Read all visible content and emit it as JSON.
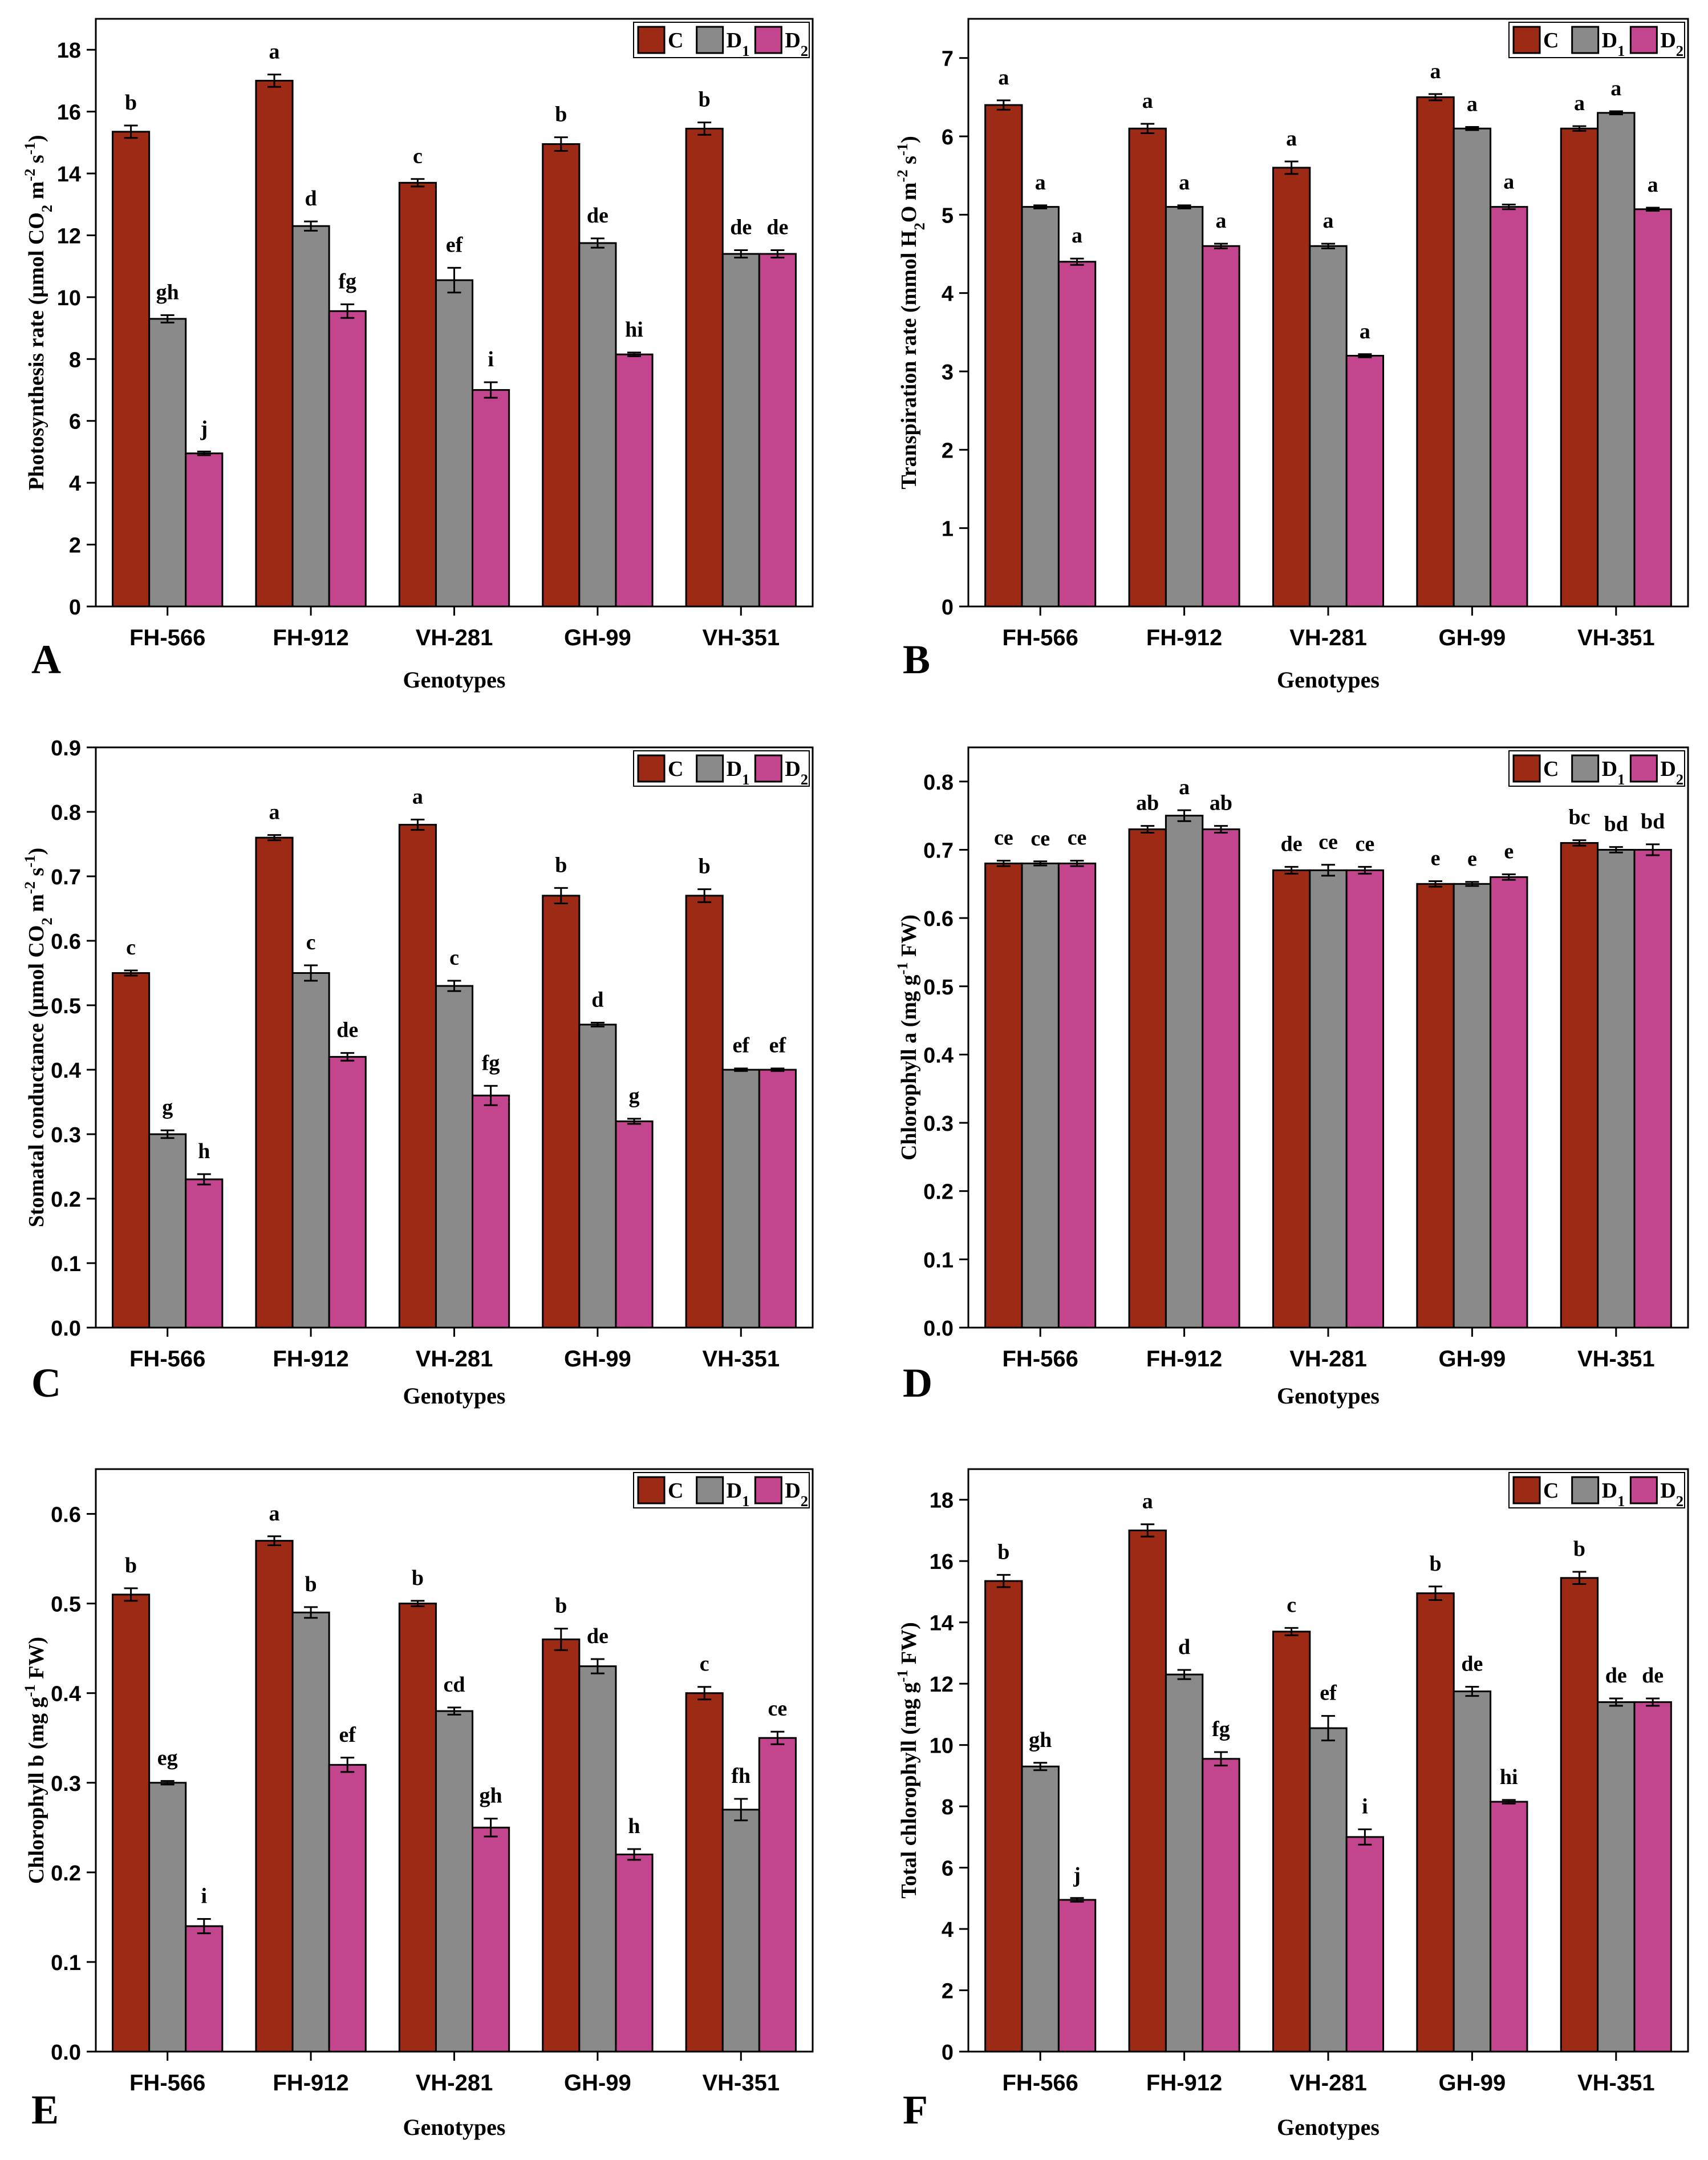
{
  "series_colors": {
    "C": "#9c2a14",
    "D1": "#8a8a8a",
    "D2": "#c2458d"
  },
  "chart_data": [
    {
      "panel": "A",
      "type": "bar",
      "ylabel": "Photosynthesis rate (µmol CO₂ m⁻² s⁻¹)",
      "xlabel": "Genotypes",
      "ylim": [
        0,
        19
      ],
      "yticks": [
        0,
        2,
        4,
        6,
        8,
        10,
        12,
        14,
        16,
        18
      ],
      "ytick_decimals": 0,
      "categories": [
        "FH-566",
        "FH-912",
        "VH-281",
        "GH-99",
        "VH-351"
      ],
      "series": [
        {
          "name": "C",
          "values": [
            15.35,
            17.0,
            13.7,
            14.95,
            15.45
          ],
          "errors": [
            0.2,
            0.2,
            0.12,
            0.22,
            0.2
          ],
          "labels": [
            "b",
            "a",
            "c",
            "b",
            "b"
          ]
        },
        {
          "name": "D1",
          "values": [
            9.3,
            12.3,
            10.55,
            11.75,
            11.4
          ],
          "errors": [
            0.12,
            0.15,
            0.4,
            0.15,
            0.12
          ],
          "labels": [
            "gh",
            "d",
            "ef",
            "de",
            "de"
          ]
        },
        {
          "name": "D2",
          "values": [
            4.95,
            9.55,
            7.0,
            8.15,
            11.4
          ],
          "errors": [
            0.06,
            0.22,
            0.25,
            0.06,
            0.12
          ],
          "labels": [
            "j",
            "fg",
            "i",
            "hi",
            "de"
          ]
        }
      ]
    },
    {
      "panel": "B",
      "type": "bar",
      "ylabel": "Transpiration rate (mmol H₂O m⁻² s⁻¹)",
      "xlabel": "Genotypes",
      "ylim": [
        0,
        7.5
      ],
      "yticks": [
        0,
        1,
        2,
        3,
        4,
        5,
        6,
        7
      ],
      "ytick_decimals": 0,
      "categories": [
        "FH-566",
        "FH-912",
        "VH-281",
        "GH-99",
        "VH-351"
      ],
      "series": [
        {
          "name": "C",
          "values": [
            6.4,
            6.1,
            5.6,
            6.5,
            6.1
          ],
          "errors": [
            0.06,
            0.06,
            0.08,
            0.04,
            0.03
          ],
          "labels": [
            "a",
            "a",
            "a",
            "a",
            "a"
          ]
        },
        {
          "name": "D1",
          "values": [
            5.1,
            5.1,
            4.6,
            6.1,
            6.3
          ],
          "errors": [
            0.02,
            0.02,
            0.03,
            0.02,
            0.02
          ],
          "labels": [
            "a",
            "a",
            "a",
            "a",
            "a"
          ]
        },
        {
          "name": "D2",
          "values": [
            4.4,
            4.6,
            3.2,
            5.1,
            5.07
          ],
          "errors": [
            0.04,
            0.03,
            0.02,
            0.03,
            0.02
          ],
          "labels": [
            "a",
            "a",
            "a",
            "a",
            "a"
          ]
        }
      ]
    },
    {
      "panel": "C",
      "type": "bar",
      "ylabel": "Stomatal conductance (µmol CO₂ m⁻² s⁻¹)",
      "xlabel": "Genotypes",
      "ylim": [
        0,
        0.9
      ],
      "yticks": [
        0.0,
        0.1,
        0.2,
        0.3,
        0.4,
        0.5,
        0.6,
        0.7,
        0.8,
        0.9
      ],
      "ytick_decimals": 1,
      "categories": [
        "FH-566",
        "FH-912",
        "VH-281",
        "GH-99",
        "VH-351"
      ],
      "series": [
        {
          "name": "C",
          "values": [
            0.55,
            0.76,
            0.78,
            0.67,
            0.67
          ],
          "errors": [
            0.004,
            0.004,
            0.008,
            0.012,
            0.01
          ],
          "labels": [
            "c",
            "a",
            "a",
            "b",
            "b"
          ]
        },
        {
          "name": "D1",
          "values": [
            0.3,
            0.55,
            0.53,
            0.47,
            0.4
          ],
          "errors": [
            0.006,
            0.012,
            0.008,
            0.003,
            0.002
          ],
          "labels": [
            "g",
            "c",
            "c",
            "d",
            "ef"
          ]
        },
        {
          "name": "D2",
          "values": [
            0.23,
            0.42,
            0.36,
            0.32,
            0.4
          ],
          "errors": [
            0.008,
            0.006,
            0.015,
            0.004,
            0.002
          ],
          "labels": [
            "h",
            "de",
            "fg",
            "g",
            "ef"
          ]
        }
      ]
    },
    {
      "panel": "D",
      "type": "bar",
      "ylabel": "Chlorophyll a (mg g⁻¹ FW)",
      "xlabel": "Genotypes",
      "ylim": [
        0,
        0.85
      ],
      "yticks": [
        0.0,
        0.1,
        0.2,
        0.3,
        0.4,
        0.5,
        0.6,
        0.7,
        0.8
      ],
      "ytick_decimals": 1,
      "categories": [
        "FH-566",
        "FH-912",
        "VH-281",
        "GH-99",
        "VH-351"
      ],
      "series": [
        {
          "name": "C",
          "values": [
            0.68,
            0.73,
            0.67,
            0.65,
            0.71
          ],
          "errors": [
            0.004,
            0.005,
            0.005,
            0.004,
            0.004
          ],
          "labels": [
            "ce",
            "ab",
            "de",
            "e",
            "bc"
          ]
        },
        {
          "name": "D1",
          "values": [
            0.68,
            0.75,
            0.67,
            0.65,
            0.7
          ],
          "errors": [
            0.003,
            0.008,
            0.008,
            0.003,
            0.004
          ],
          "labels": [
            "ce",
            "a",
            "ce",
            "e",
            "bd"
          ]
        },
        {
          "name": "D2",
          "values": [
            0.68,
            0.73,
            0.67,
            0.66,
            0.7
          ],
          "errors": [
            0.004,
            0.005,
            0.005,
            0.004,
            0.008
          ],
          "labels": [
            "ce",
            "ab",
            "ce",
            "e",
            "bd"
          ]
        }
      ]
    },
    {
      "panel": "E",
      "type": "bar",
      "ylabel": "Chlorophyll b (mg g⁻¹ FW)",
      "xlabel": "Genotypes",
      "ylim": [
        0,
        0.65
      ],
      "yticks": [
        0.0,
        0.1,
        0.2,
        0.3,
        0.4,
        0.5,
        0.6
      ],
      "ytick_decimals": 1,
      "categories": [
        "FH-566",
        "FH-912",
        "VH-281",
        "GH-99",
        "VH-351"
      ],
      "series": [
        {
          "name": "C",
          "values": [
            0.51,
            0.57,
            0.5,
            0.46,
            0.4
          ],
          "errors": [
            0.007,
            0.005,
            0.003,
            0.012,
            0.007
          ],
          "labels": [
            "b",
            "a",
            "b",
            "b",
            "c"
          ]
        },
        {
          "name": "D1",
          "values": [
            0.3,
            0.49,
            0.38,
            0.43,
            0.27
          ],
          "errors": [
            0.002,
            0.006,
            0.004,
            0.008,
            0.012
          ],
          "labels": [
            "eg",
            "b",
            "cd",
            "de",
            "fh"
          ]
        },
        {
          "name": "D2",
          "values": [
            0.14,
            0.32,
            0.25,
            0.22,
            0.35
          ],
          "errors": [
            0.008,
            0.008,
            0.01,
            0.006,
            0.007
          ],
          "labels": [
            "i",
            "ef",
            "gh",
            "h",
            "ce"
          ]
        }
      ]
    },
    {
      "panel": "F",
      "type": "bar",
      "ylabel": "Total chlorophyll (mg g⁻¹ FW)",
      "xlabel": "Genotypes",
      "ylim": [
        0,
        19
      ],
      "yticks": [
        0,
        2,
        4,
        6,
        8,
        10,
        12,
        14,
        16,
        18
      ],
      "ytick_decimals": 0,
      "categories": [
        "FH-566",
        "FH-912",
        "VH-281",
        "GH-99",
        "VH-351"
      ],
      "series": [
        {
          "name": "C",
          "values": [
            15.35,
            17.0,
            13.7,
            14.95,
            15.45
          ],
          "errors": [
            0.2,
            0.2,
            0.12,
            0.22,
            0.2
          ],
          "labels": [
            "b",
            "a",
            "c",
            "b",
            "b"
          ]
        },
        {
          "name": "D1",
          "values": [
            9.3,
            12.3,
            10.55,
            11.75,
            11.4
          ],
          "errors": [
            0.12,
            0.15,
            0.4,
            0.15,
            0.12
          ],
          "labels": [
            "gh",
            "d",
            "ef",
            "de",
            "de"
          ]
        },
        {
          "name": "D2",
          "values": [
            4.95,
            9.55,
            7.0,
            8.15,
            11.4
          ],
          "errors": [
            0.06,
            0.22,
            0.25,
            0.06,
            0.12
          ],
          "labels": [
            "j",
            "fg",
            "i",
            "hi",
            "de"
          ]
        }
      ]
    }
  ]
}
